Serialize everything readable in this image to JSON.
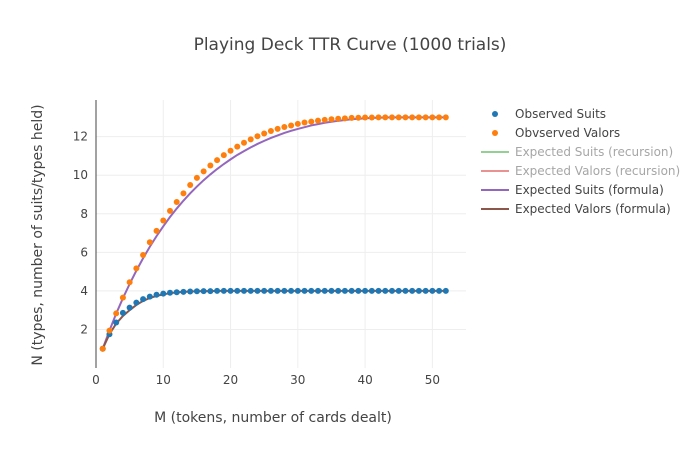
{
  "chart_data": {
    "type": "scatter",
    "title": "Playing Deck TTR Curve (1000 trials)",
    "xlabel": "M (tokens, number of cards dealt)",
    "ylabel": "N (types, number of suits/types held)",
    "xlim": [
      0,
      55
    ],
    "ylim": [
      0,
      13.9
    ],
    "xticks": [
      0,
      10,
      20,
      30,
      40,
      50
    ],
    "yticks": [
      2,
      4,
      6,
      8,
      10,
      12
    ],
    "grid": true,
    "legend_position": "right",
    "series": [
      {
        "name": "Observed Suits",
        "mode": "markers",
        "color": "#1f77b4",
        "visible": true,
        "x": [
          1,
          2,
          3,
          4,
          5,
          6,
          7,
          8,
          9,
          10,
          11,
          12,
          13,
          14,
          15,
          16,
          17,
          18,
          19,
          20,
          21,
          22,
          23,
          24,
          25,
          26,
          27,
          28,
          29,
          30,
          31,
          32,
          33,
          34,
          35,
          36,
          37,
          38,
          39,
          40,
          41,
          42,
          43,
          44,
          45,
          46,
          47,
          48,
          49,
          50,
          51,
          52
        ],
        "y": [
          1,
          1.75,
          2.36,
          2.86,
          3.13,
          3.39,
          3.57,
          3.7,
          3.8,
          3.86,
          3.9,
          3.93,
          3.95,
          3.97,
          3.98,
          3.99,
          3.99,
          4,
          4,
          4,
          4,
          4,
          4,
          4,
          4,
          4,
          4,
          4,
          4,
          4,
          4,
          4,
          4,
          4,
          4,
          4,
          4,
          4,
          4,
          4,
          4,
          4,
          4,
          4,
          4,
          4,
          4,
          4,
          4,
          4,
          4,
          4
        ]
      },
      {
        "name": "Obvserved Valors",
        "mode": "markers",
        "color": "#ff7f0e",
        "visible": true,
        "x": [
          1,
          2,
          3,
          4,
          5,
          6,
          7,
          8,
          9,
          10,
          11,
          12,
          13,
          14,
          15,
          16,
          17,
          18,
          19,
          20,
          21,
          22,
          23,
          24,
          25,
          26,
          27,
          28,
          29,
          30,
          31,
          32,
          33,
          34,
          35,
          36,
          37,
          38,
          39,
          40,
          41,
          42,
          43,
          44,
          45,
          46,
          47,
          48,
          49,
          50,
          51,
          52
        ],
        "y": [
          1,
          1.94,
          2.83,
          3.65,
          4.45,
          5.17,
          5.86,
          6.52,
          7.11,
          7.65,
          8.15,
          8.61,
          9.06,
          9.49,
          9.86,
          10.2,
          10.5,
          10.78,
          11.04,
          11.27,
          11.48,
          11.68,
          11.86,
          12.02,
          12.16,
          12.29,
          12.4,
          12.5,
          12.58,
          12.66,
          12.73,
          12.78,
          12.83,
          12.87,
          12.9,
          12.93,
          12.95,
          12.97,
          12.98,
          12.99,
          12.99,
          13,
          13,
          13,
          13,
          13,
          13,
          13,
          13,
          13,
          13,
          13
        ]
      },
      {
        "name": "Expected Suits (recursion)",
        "mode": "lines",
        "color": "#2ca02c",
        "visible": false,
        "x": [],
        "y": []
      },
      {
        "name": "Expected Valors (recursion)",
        "mode": "lines",
        "color": "#d62728",
        "visible": false,
        "x": [],
        "y": []
      },
      {
        "name": "Expected Suits (formula)",
        "mode": "lines",
        "color": "#9467bd",
        "visible": true,
        "x": [
          1,
          2,
          3,
          4,
          5,
          6,
          7,
          8,
          9,
          10,
          11,
          12,
          13,
          14,
          15,
          16,
          17,
          18,
          19,
          20,
          21,
          22,
          23,
          24,
          25,
          26,
          27,
          28,
          29,
          30,
          31,
          32,
          33,
          34,
          35,
          36,
          37,
          38,
          39,
          40,
          41,
          42,
          43,
          44,
          45,
          46,
          47,
          48,
          49,
          50,
          51,
          52
        ],
        "y": [
          1,
          1.94,
          2.82,
          3.62,
          4.36,
          5.05,
          5.69,
          6.29,
          6.84,
          7.35,
          7.83,
          8.27,
          8.68,
          9.06,
          9.41,
          9.74,
          10.04,
          10.32,
          10.58,
          10.82,
          11.05,
          11.25,
          11.44,
          11.62,
          11.78,
          11.93,
          12.06,
          12.19,
          12.3,
          12.4,
          12.49,
          12.58,
          12.65,
          12.72,
          12.77,
          12.82,
          12.86,
          12.9,
          12.93,
          12.95,
          12.97,
          12.98,
          12.99,
          13,
          13,
          13,
          13,
          13,
          13,
          13,
          13,
          13
        ]
      },
      {
        "name": "Expected Valors (formula)",
        "mode": "lines",
        "color": "#8c564b",
        "visible": true,
        "x": [
          1,
          2,
          3,
          4,
          5,
          6,
          7,
          8,
          9,
          10,
          11,
          12,
          13,
          14,
          15,
          16,
          17,
          18,
          19,
          20,
          21,
          22,
          23,
          24,
          25,
          26,
          27,
          28,
          29,
          30,
          31,
          32,
          33,
          34,
          35,
          36,
          37,
          38,
          39,
          40,
          41,
          42,
          43,
          44,
          45,
          46,
          47,
          48,
          49,
          50,
          51,
          52
        ],
        "y": [
          1,
          1.75,
          2.3,
          2.7,
          3.0,
          3.27,
          3.48,
          3.63,
          3.74,
          3.82,
          3.88,
          3.92,
          3.95,
          3.97,
          3.98,
          3.99,
          3.99,
          4,
          4,
          4,
          4,
          4,
          4,
          4,
          4,
          4,
          4,
          4,
          4,
          4,
          4,
          4,
          4,
          4,
          4,
          4,
          4,
          4,
          4,
          4,
          4,
          4,
          4,
          4,
          4,
          4,
          4,
          4,
          4,
          4,
          4,
          4
        ]
      }
    ]
  }
}
